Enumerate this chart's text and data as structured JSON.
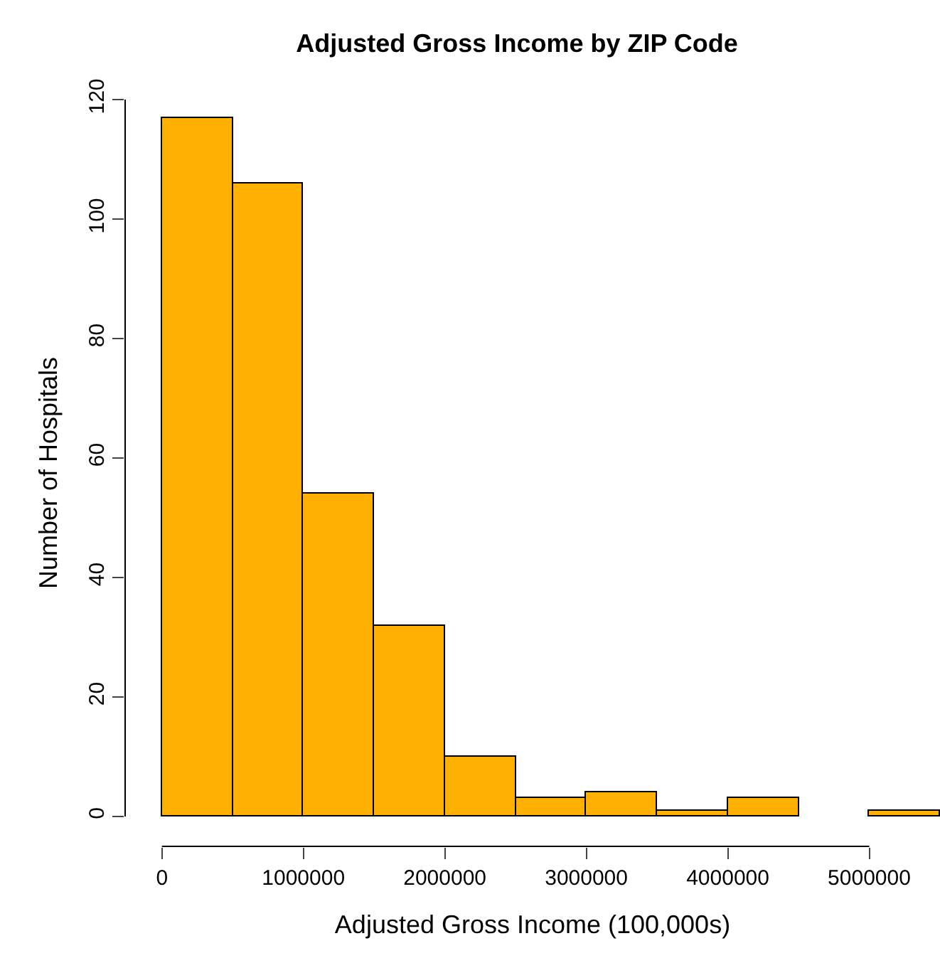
{
  "chart_data": {
    "type": "histogram",
    "title": "Adjusted Gross Income by ZIP Code",
    "xlabel": "Adjusted Gross Income (100,000s)",
    "ylabel": "Number of Hospitals",
    "bins": [
      0,
      500000,
      1000000,
      1500000,
      2000000,
      2500000,
      3000000,
      3500000,
      4000000,
      4500000,
      5000000,
      5500000
    ],
    "values": [
      117,
      106,
      54,
      32,
      10,
      3,
      4,
      1,
      3,
      0,
      1
    ],
    "color": "#ffb000",
    "xlim": [
      -260000,
      5500000
    ],
    "xticks": [
      0,
      1000000,
      2000000,
      3000000,
      4000000,
      5000000
    ],
    "ylim": [
      -5,
      120
    ],
    "yticks": [
      0,
      20,
      40,
      60,
      80,
      100,
      120
    ],
    "grid": false
  }
}
